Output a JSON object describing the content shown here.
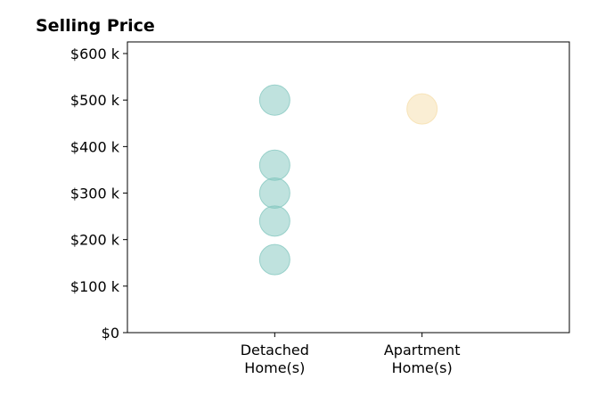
{
  "chart_data": {
    "type": "scatter",
    "title": "Selling Price",
    "xlabel": "",
    "ylabel": "",
    "categories": [
      "Detached\nHome(s)",
      "Apartment\nHome(s)"
    ],
    "xlim": [
      -1,
      2
    ],
    "ylim": [
      0,
      625
    ],
    "yticks": [
      0,
      100,
      200,
      300,
      400,
      500,
      600
    ],
    "ytick_labels": [
      "$0",
      "$100 k",
      "$200 k",
      "$300 k",
      "$400 k",
      "$500 k",
      "$600 k"
    ],
    "grid": false,
    "series": [
      {
        "category": "Detached\nHome(s)",
        "color": "#80c6bd",
        "values": [
          500,
          360,
          300,
          240,
          157
        ]
      },
      {
        "category": "Apartment\nHome(s)",
        "color": "#f5deaa",
        "values": [
          481
        ]
      }
    ]
  }
}
